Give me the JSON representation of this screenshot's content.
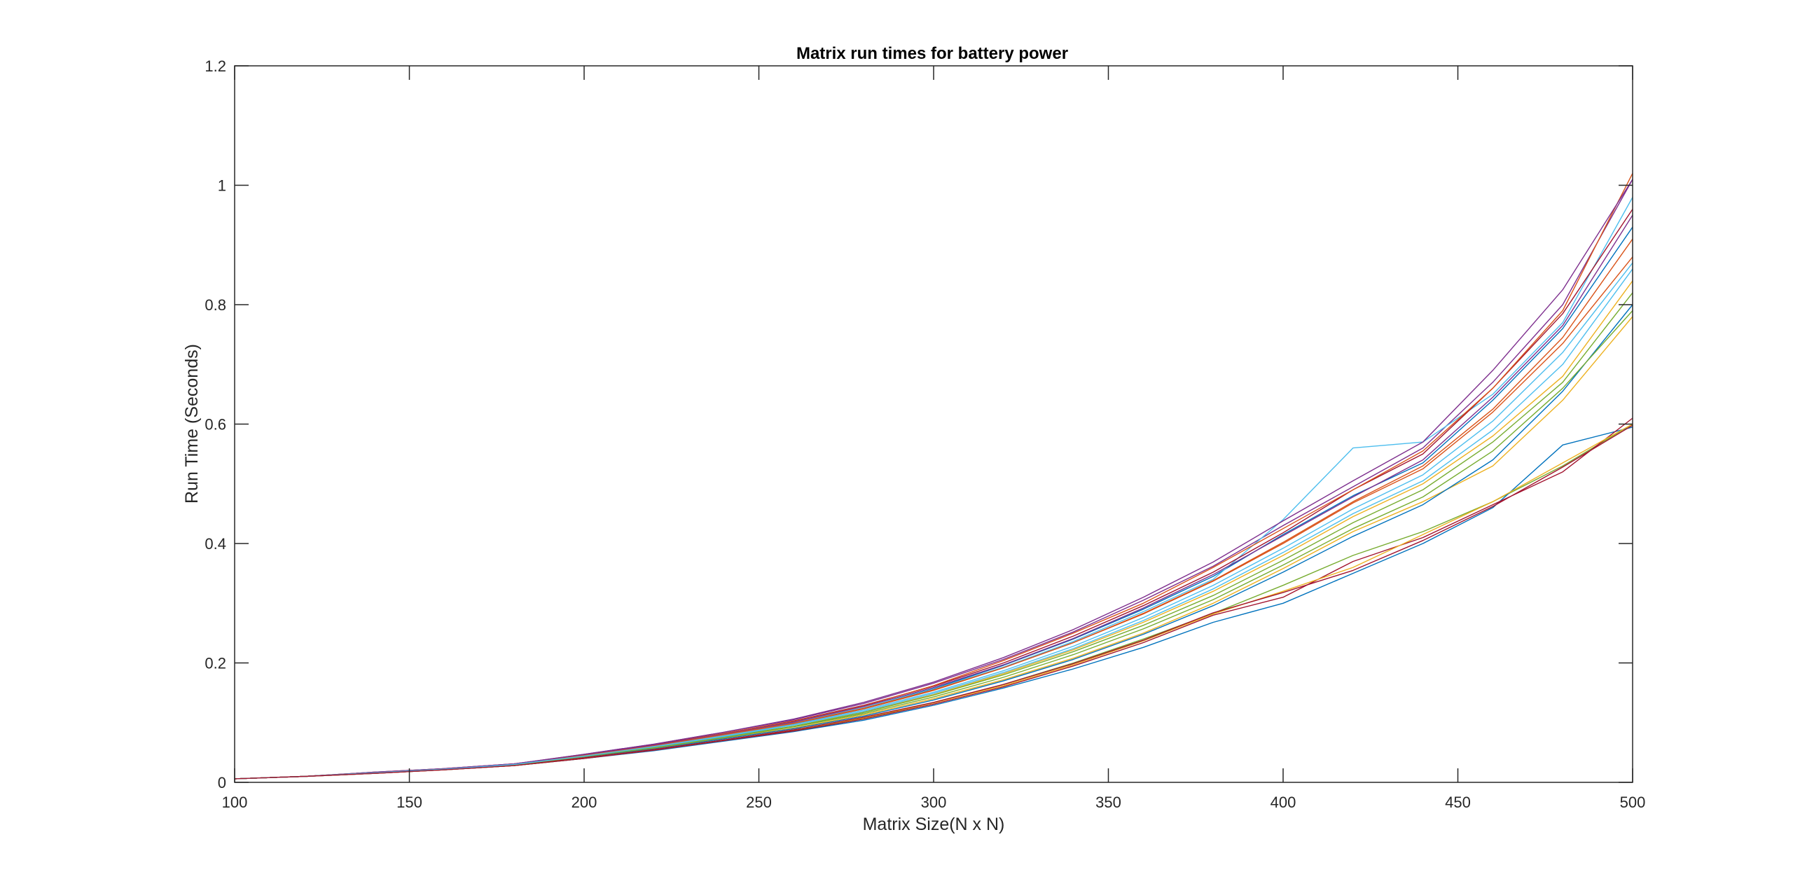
{
  "chart_data": {
    "type": "line",
    "title": "Matrix run times for battery power",
    "xlabel": "Matrix Size(N x N)",
    "ylabel": "Run Time (Seconds)",
    "xlim": [
      100,
      500
    ],
    "ylim": [
      0,
      1.2
    ],
    "xticks": [
      100,
      150,
      200,
      250,
      300,
      350,
      400,
      450,
      500
    ],
    "yticks": [
      0,
      0.2,
      0.4,
      0.6,
      0.8,
      1,
      1.2
    ],
    "ytick_labels": [
      "0",
      "0.2",
      "0.4",
      "0.6",
      "0.8",
      "1",
      "1.2"
    ],
    "grid": false,
    "legend": "none",
    "series_colors": [
      "#0072BD",
      "#D95319",
      "#EDB120",
      "#7E2F8E",
      "#77AC30",
      "#4DBEEE",
      "#A2142F"
    ],
    "x": [
      100,
      120,
      140,
      160,
      180,
      200,
      220,
      240,
      260,
      280,
      300,
      320,
      340,
      360,
      380,
      400,
      420,
      440,
      460,
      480,
      500
    ],
    "series": [
      {
        "values": [
          0.006,
          0.01,
          0.016,
          0.022,
          0.03,
          0.046,
          0.061,
          0.08,
          0.1,
          0.125,
          0.157,
          0.196,
          0.24,
          0.29,
          0.345,
          0.415,
          0.48,
          0.535,
          0.64,
          0.76,
          0.93
        ]
      },
      {
        "values": [
          0.006,
          0.01,
          0.016,
          0.022,
          0.03,
          0.044,
          0.06,
          0.079,
          0.098,
          0.123,
          0.154,
          0.192,
          0.234,
          0.282,
          0.337,
          0.4,
          0.468,
          0.525,
          0.62,
          0.735,
          0.88
        ]
      },
      {
        "values": [
          0.006,
          0.01,
          0.016,
          0.022,
          0.03,
          0.043,
          0.058,
          0.076,
          0.094,
          0.118,
          0.147,
          0.182,
          0.222,
          0.268,
          0.32,
          0.38,
          0.445,
          0.5,
          0.58,
          0.68,
          0.84
        ]
      },
      {
        "values": [
          0.006,
          0.01,
          0.017,
          0.023,
          0.031,
          0.047,
          0.064,
          0.084,
          0.105,
          0.132,
          0.166,
          0.206,
          0.252,
          0.305,
          0.362,
          0.43,
          0.495,
          0.56,
          0.67,
          0.8,
          1.01
        ]
      },
      {
        "values": [
          0.006,
          0.01,
          0.015,
          0.021,
          0.028,
          0.04,
          0.054,
          0.071,
          0.087,
          0.107,
          0.133,
          0.164,
          0.2,
          0.24,
          0.283,
          0.33,
          0.38,
          0.42,
          0.47,
          0.53,
          0.6
        ]
      },
      {
        "values": [
          0.006,
          0.01,
          0.016,
          0.022,
          0.03,
          0.045,
          0.061,
          0.08,
          0.1,
          0.125,
          0.156,
          0.193,
          0.236,
          0.286,
          0.34,
          0.44,
          0.56,
          0.57,
          0.65,
          0.77,
          0.98
        ]
      },
      {
        "values": [
          0.006,
          0.01,
          0.017,
          0.023,
          0.031,
          0.046,
          0.063,
          0.082,
          0.103,
          0.129,
          0.161,
          0.2,
          0.245,
          0.296,
          0.352,
          0.418,
          0.49,
          0.55,
          0.66,
          0.785,
          0.96
        ]
      },
      {
        "values": [
          0.006,
          0.01,
          0.015,
          0.021,
          0.028,
          0.04,
          0.053,
          0.069,
          0.085,
          0.104,
          0.129,
          0.158,
          0.19,
          0.226,
          0.268,
          0.3,
          0.35,
          0.4,
          0.46,
          0.565,
          0.595
        ]
      },
      {
        "values": [
          0.006,
          0.01,
          0.016,
          0.022,
          0.03,
          0.045,
          0.062,
          0.082,
          0.102,
          0.128,
          0.162,
          0.204,
          0.25,
          0.3,
          0.36,
          0.425,
          0.49,
          0.555,
          0.66,
          0.79,
          1.02
        ]
      },
      {
        "values": [
          0.006,
          0.01,
          0.016,
          0.022,
          0.029,
          0.042,
          0.057,
          0.074,
          0.091,
          0.113,
          0.14,
          0.172,
          0.208,
          0.25,
          0.3,
          0.358,
          0.42,
          0.47,
          0.53,
          0.64,
          0.78
        ]
      },
      {
        "values": [
          0.006,
          0.01,
          0.016,
          0.022,
          0.03,
          0.046,
          0.062,
          0.081,
          0.101,
          0.127,
          0.159,
          0.197,
          0.241,
          0.292,
          0.348,
          0.413,
          0.478,
          0.54,
          0.645,
          0.765,
          0.95
        ]
      },
      {
        "values": [
          0.006,
          0.01,
          0.016,
          0.022,
          0.029,
          0.043,
          0.058,
          0.076,
          0.094,
          0.117,
          0.146,
          0.18,
          0.219,
          0.263,
          0.313,
          0.372,
          0.435,
          0.49,
          0.57,
          0.67,
          0.82
        ]
      },
      {
        "values": [
          0.006,
          0.01,
          0.016,
          0.022,
          0.03,
          0.044,
          0.059,
          0.077,
          0.096,
          0.119,
          0.149,
          0.184,
          0.224,
          0.271,
          0.324,
          0.385,
          0.45,
          0.505,
          0.59,
          0.7,
          0.86
        ]
      },
      {
        "values": [
          0.006,
          0.01,
          0.015,
          0.021,
          0.028,
          0.04,
          0.054,
          0.07,
          0.086,
          0.106,
          0.131,
          0.16,
          0.195,
          0.234,
          0.28,
          0.31,
          0.37,
          0.41,
          0.465,
          0.52,
          0.61
        ]
      },
      {
        "values": [
          0.006,
          0.01,
          0.016,
          0.022,
          0.029,
          0.042,
          0.056,
          0.073,
          0.09,
          0.111,
          0.138,
          0.17,
          0.206,
          0.248,
          0.296,
          0.352,
          0.412,
          0.465,
          0.54,
          0.655,
          0.8
        ]
      },
      {
        "values": [
          0.006,
          0.01,
          0.016,
          0.022,
          0.03,
          0.045,
          0.061,
          0.08,
          0.099,
          0.124,
          0.155,
          0.192,
          0.234,
          0.283,
          0.338,
          0.402,
          0.47,
          0.53,
          0.625,
          0.745,
          0.91
        ]
      },
      {
        "values": [
          0.006,
          0.01,
          0.015,
          0.021,
          0.028,
          0.041,
          0.055,
          0.071,
          0.088,
          0.108,
          0.133,
          0.162,
          0.197,
          0.237,
          0.282,
          0.32,
          0.36,
          0.415,
          0.47,
          0.535,
          0.6
        ]
      },
      {
        "values": [
          0.006,
          0.01,
          0.017,
          0.023,
          0.031,
          0.047,
          0.064,
          0.084,
          0.106,
          0.134,
          0.168,
          0.209,
          0.256,
          0.31,
          0.369,
          0.438,
          0.505,
          0.57,
          0.69,
          0.825,
          1.01
        ]
      },
      {
        "values": [
          0.006,
          0.01,
          0.016,
          0.022,
          0.029,
          0.043,
          0.058,
          0.075,
          0.093,
          0.115,
          0.143,
          0.176,
          0.214,
          0.257,
          0.306,
          0.364,
          0.425,
          0.478,
          0.555,
          0.66,
          0.79
        ]
      },
      {
        "values": [
          0.006,
          0.01,
          0.016,
          0.022,
          0.03,
          0.044,
          0.06,
          0.078,
          0.097,
          0.121,
          0.151,
          0.187,
          0.228,
          0.276,
          0.33,
          0.392,
          0.458,
          0.515,
          0.605,
          0.72,
          0.87
        ]
      },
      {
        "values": [
          0.006,
          0.01,
          0.015,
          0.021,
          0.028,
          0.041,
          0.055,
          0.071,
          0.088,
          0.109,
          0.134,
          0.164,
          0.199,
          0.238,
          0.284,
          0.318,
          0.355,
          0.405,
          0.462,
          0.528,
          0.598
        ]
      }
    ]
  }
}
